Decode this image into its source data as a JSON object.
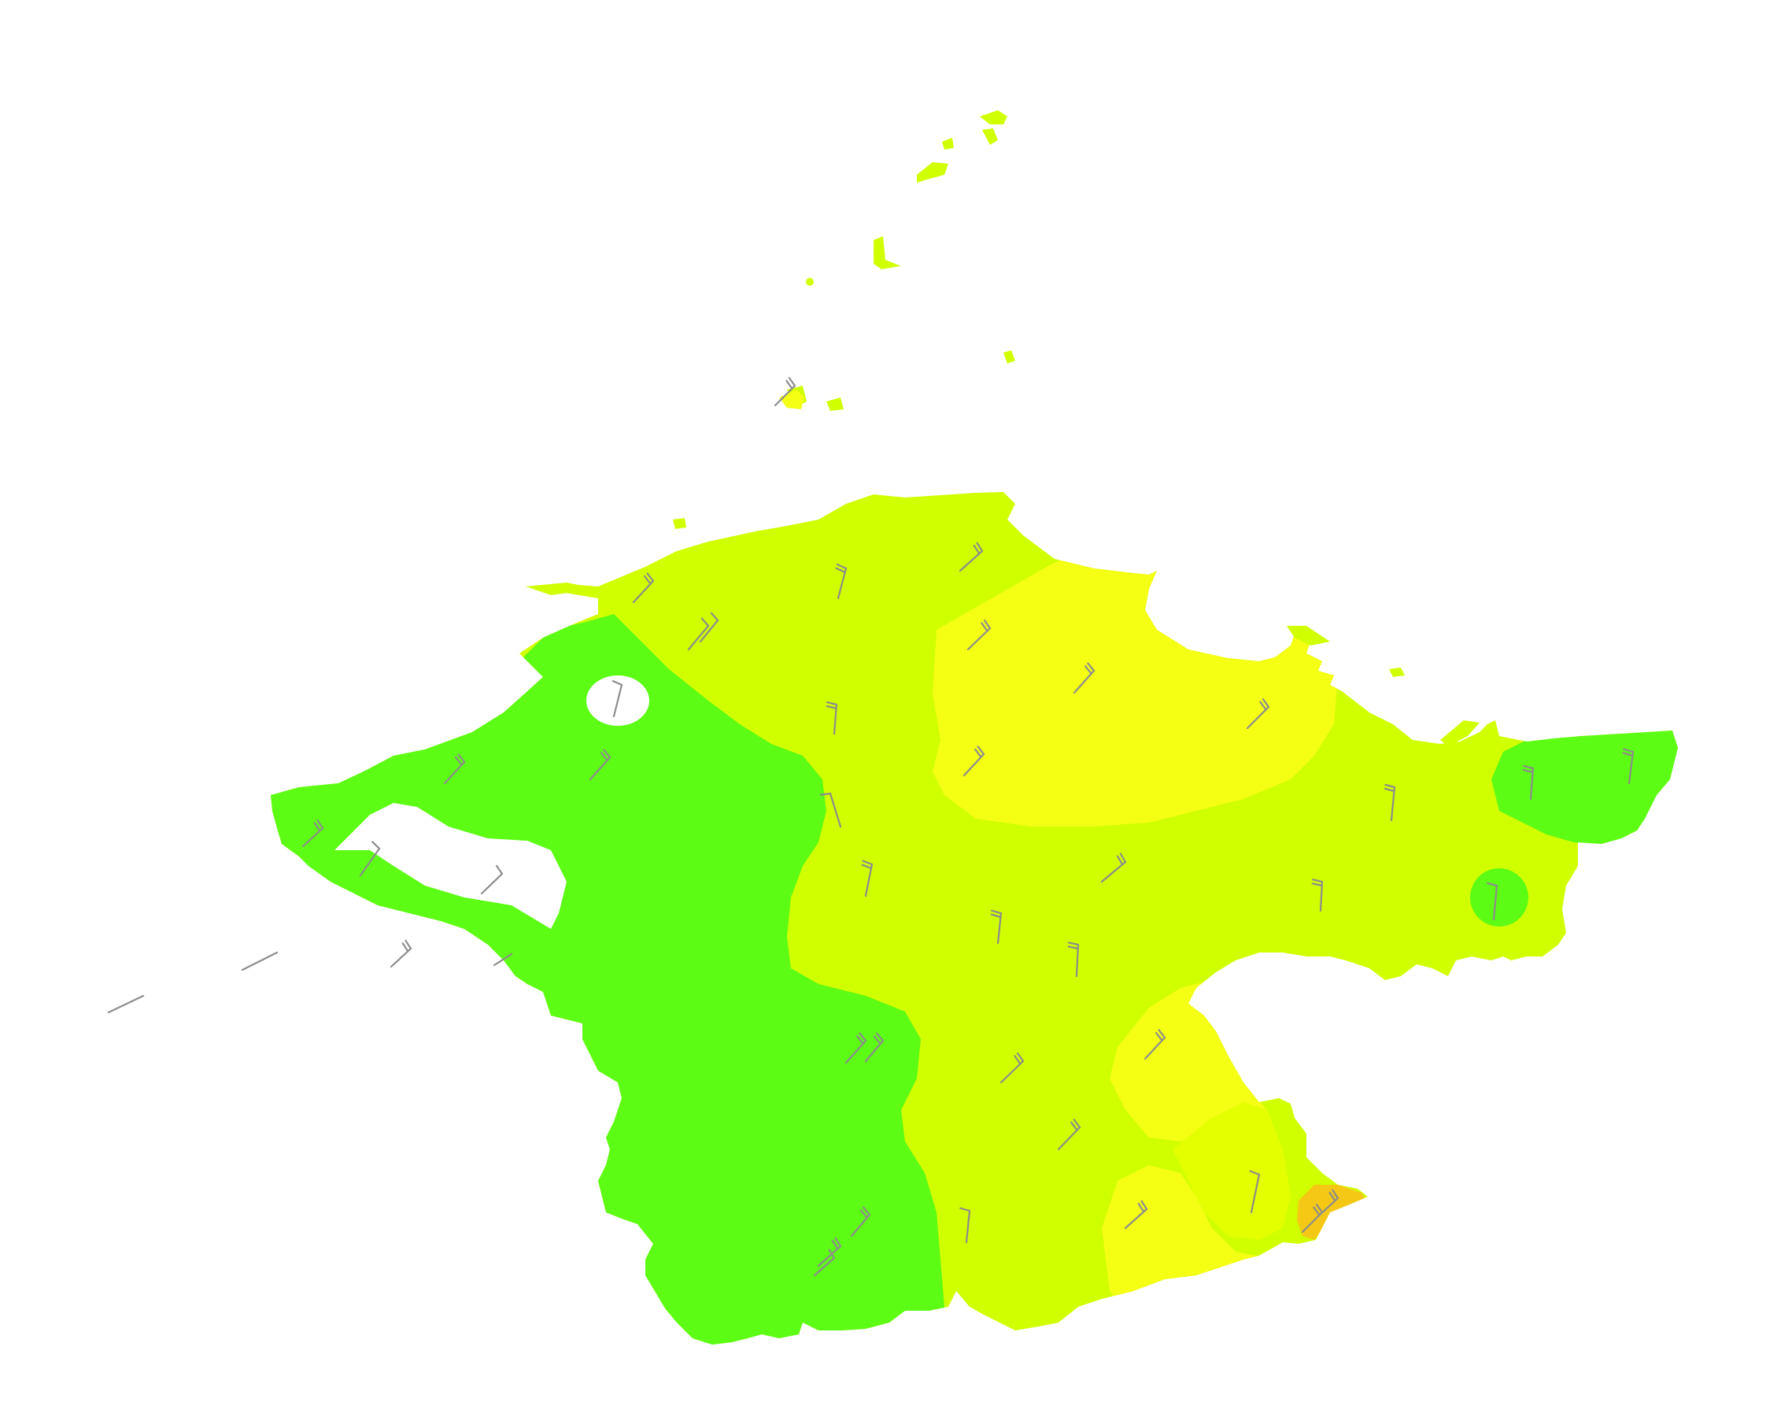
{
  "map": {
    "type": "filled-contour-with-wind-barbs",
    "colors": {
      "background": "#ffffff",
      "green": "#5cfc14",
      "yellow_green": "#d0ff00",
      "lime_yellow": "#e4ff00",
      "yellow": "#f4ff14",
      "orange": "#f4c814",
      "barb": "#8c8c8c"
    },
    "layers": [
      {
        "name": "yellow-green-zone",
        "color": "#d0ff00"
      },
      {
        "name": "green-zone",
        "color": "#5cfc14"
      },
      {
        "name": "yellow-zone",
        "color": "#f4ff14"
      },
      {
        "name": "orange-zone",
        "color": "#f4c814"
      }
    ],
    "wind_barbs": {
      "count": 44,
      "color": "#8c8c8c"
    }
  }
}
